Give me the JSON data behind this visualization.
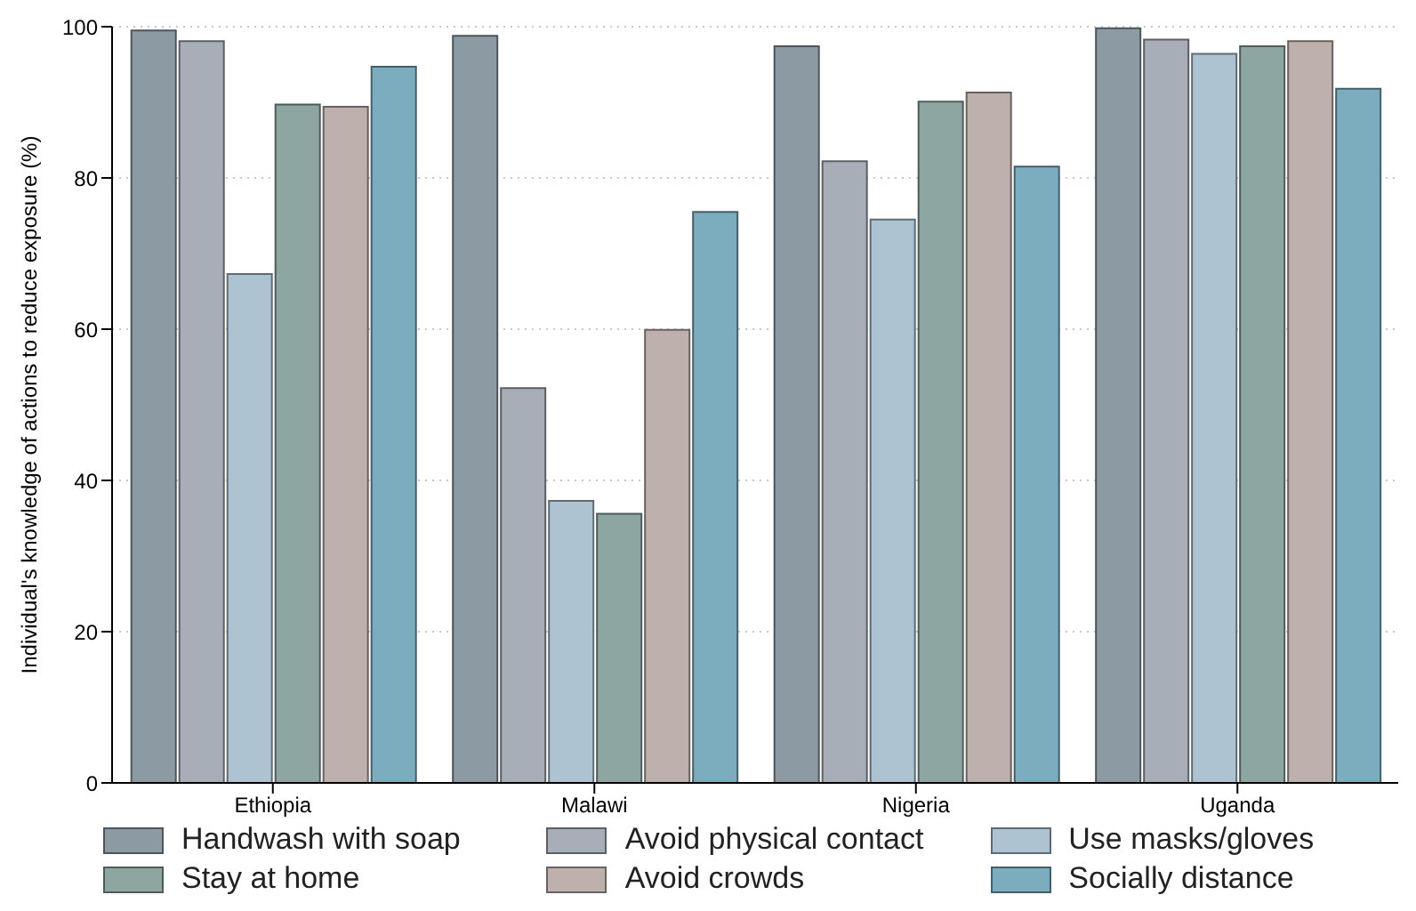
{
  "chart_data": {
    "type": "bar",
    "ylabel": "Individual's knowledge of actions to reduce exposure (%)",
    "categories": [
      "Ethiopia",
      "Malawi",
      "Nigeria",
      "Uganda"
    ],
    "series": [
      {
        "name": "Handwash with soap",
        "color": "#8c9aa3",
        "values": [
          99.5,
          98.8,
          97.4,
          99.8
        ]
      },
      {
        "name": "Avoid physical contact",
        "color": "#a8aeb7",
        "values": [
          98.1,
          52.2,
          82.2,
          98.3
        ]
      },
      {
        "name": "Use masks/gloves",
        "color": "#adc3d1",
        "values": [
          67.3,
          37.3,
          74.5,
          96.4
        ]
      },
      {
        "name": "Stay at home",
        "color": "#8ea6a1",
        "values": [
          89.7,
          35.6,
          90.1,
          97.4
        ]
      },
      {
        "name": "Avoid crowds",
        "color": "#beb0ad",
        "values": [
          89.4,
          59.9,
          91.3,
          98.1
        ]
      },
      {
        "name": "Socially distance",
        "color": "#7badbf",
        "values": [
          94.7,
          75.5,
          81.5,
          91.8
        ]
      }
    ],
    "ylim": [
      0,
      100
    ],
    "yticks": [
      0,
      20,
      40,
      60,
      80,
      100
    ],
    "grid": "y",
    "legend": "bottom"
  }
}
